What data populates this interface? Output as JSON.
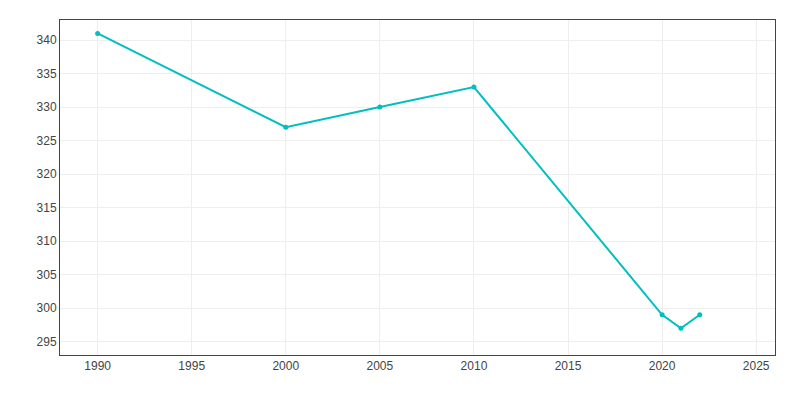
{
  "chart_data": {
    "type": "line",
    "x": [
      1990,
      2000,
      2005,
      2010,
      2020,
      2021,
      2022
    ],
    "values": [
      341,
      327,
      330,
      333,
      299,
      297,
      299
    ],
    "color": "#00BFBF",
    "marker": "circle",
    "xlim": [
      1988,
      2026
    ],
    "xticks": [
      1990,
      1995,
      2000,
      2005,
      2010,
      2015,
      2020,
      2025
    ],
    "ylim": [
      293,
      343
    ],
    "yticks": [
      295,
      300,
      305,
      310,
      315,
      320,
      325,
      330,
      335,
      340
    ],
    "grid": true
  }
}
